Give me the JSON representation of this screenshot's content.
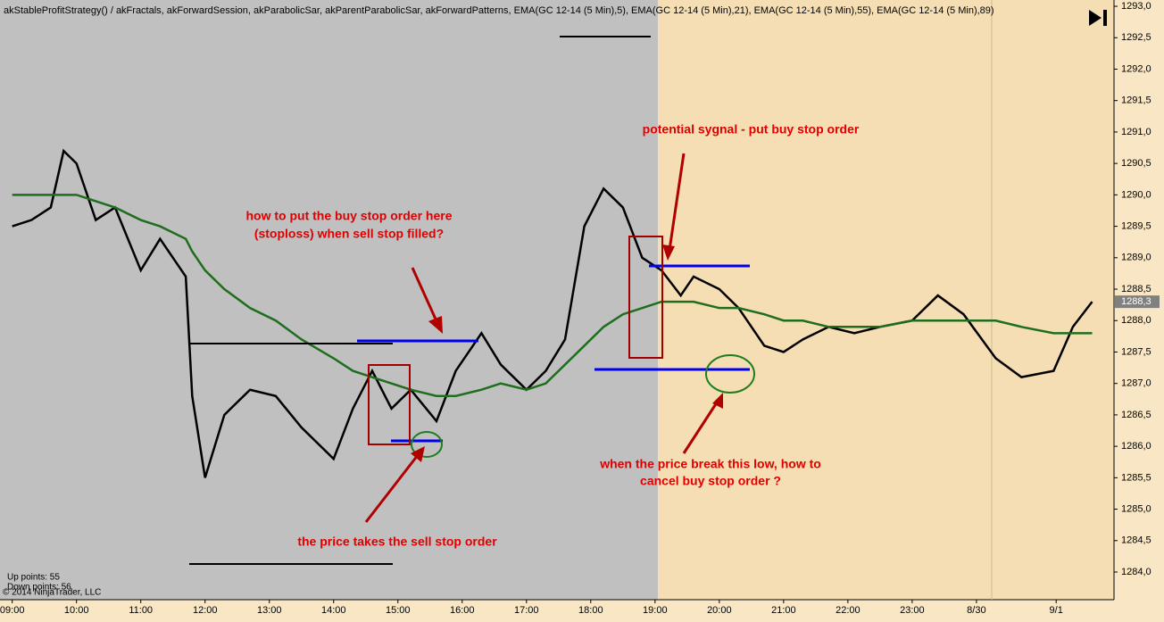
{
  "chart_data": {
    "type": "line",
    "title": "akStableProfitStrategy() / akFractals, akForwardSession, akParabolicSar, akParentParabolicSar, akForwardPatterns, EMA(GC 12-14 (5 Min),5), EMA(GC 12-14 (5 Min),21), EMA(GC 12-14 (5 Min),55), EMA(GC 12-14 (5 Min),89)",
    "x": [
      0,
      0.3,
      0.6,
      0.8,
      1.0,
      1.3,
      1.6,
      2.0,
      2.3,
      2.7,
      2.8,
      3.0,
      3.3,
      3.7,
      4.1,
      4.5,
      5.0,
      5.3,
      5.6,
      5.9,
      6.2,
      6.6,
      6.9,
      7.3,
      7.6,
      8.0,
      8.3,
      8.6,
      8.9,
      9.2,
      9.5,
      9.8,
      10.1,
      10.4,
      10.6,
      11.0,
      11.3,
      11.7,
      12.0,
      12.3,
      12.7,
      13.1,
      13.5,
      14.0,
      14.4,
      14.8,
      15.3,
      15.7,
      16.2,
      16.5,
      16.8
    ],
    "series": [
      {
        "color": "#000000",
        "values": [
          1289.5,
          1289.6,
          1289.8,
          1290.7,
          1290.5,
          1289.6,
          1289.8,
          1288.8,
          1289.3,
          1288.7,
          1286.8,
          1285.5,
          1286.5,
          1286.9,
          1286.8,
          1286.3,
          1285.8,
          1286.6,
          1287.2,
          1286.6,
          1286.9,
          1286.4,
          1287.2,
          1287.8,
          1287.3,
          1286.9,
          1287.2,
          1287.7,
          1289.5,
          1290.1,
          1289.8,
          1289.0,
          1288.8,
          1288.4,
          1288.7,
          1288.5,
          1288.2,
          1287.6,
          1287.5,
          1287.7,
          1287.9,
          1287.8,
          1287.9,
          1288.0,
          1288.4,
          1288.1,
          1287.4,
          1287.1,
          1287.2,
          1287.9,
          1288.3
        ]
      },
      {
        "color": "#1e6e1e",
        "values": [
          1290.0,
          1290.0,
          1290.0,
          1290.0,
          1290.0,
          1289.9,
          1289.8,
          1289.6,
          1289.5,
          1289.3,
          1289.1,
          1288.8,
          1288.5,
          1288.2,
          1288.0,
          1287.7,
          1287.4,
          1287.2,
          1287.1,
          1287.0,
          1286.9,
          1286.8,
          1286.8,
          1286.9,
          1287.0,
          1286.9,
          1287.0,
          1287.3,
          1287.6,
          1287.9,
          1288.1,
          1288.2,
          1288.3,
          1288.3,
          1288.3,
          1288.2,
          1288.2,
          1288.1,
          1288.0,
          1288.0,
          1287.9,
          1287.9,
          1287.9,
          1288.0,
          1288.0,
          1288.0,
          1288.0,
          1287.9,
          1287.8,
          1287.8,
          1287.8
        ]
      }
    ],
    "xlim": [
      -0.19,
      17.14
    ],
    "xticks": [
      {
        "value": 0,
        "label": "09:00"
      },
      {
        "value": 1,
        "label": "10:00"
      },
      {
        "value": 2,
        "label": "11:00"
      },
      {
        "value": 3,
        "label": "12:00"
      },
      {
        "value": 4,
        "label": "13:00"
      },
      {
        "value": 5,
        "label": "14:00"
      },
      {
        "value": 6,
        "label": "15:00"
      },
      {
        "value": 7,
        "label": "16:00"
      },
      {
        "value": 8,
        "label": "17:00"
      },
      {
        "value": 9,
        "label": "18:00"
      },
      {
        "value": 10,
        "label": "19:00"
      },
      {
        "value": 11,
        "label": "20:00"
      },
      {
        "value": 12,
        "label": "21:00"
      },
      {
        "value": 13,
        "label": "22:00"
      },
      {
        "value": 14,
        "label": "23:00"
      },
      {
        "value": 15,
        "label": "8/30"
      },
      {
        "value": 16.24,
        "label": "9/1"
      }
    ],
    "ylim": [
      1283.56,
      1293.1
    ],
    "yticks": [
      {
        "value": 1284,
        "label": "1284,0"
      },
      {
        "value": 1284.5,
        "label": "1284,5"
      },
      {
        "value": 1285,
        "label": "1285,0"
      },
      {
        "value": 1285.5,
        "label": "1285,5"
      },
      {
        "value": 1286,
        "label": "1286,0"
      },
      {
        "value": 1286.5,
        "label": "1286,5"
      },
      {
        "value": 1287,
        "label": "1287,0"
      },
      {
        "value": 1287.5,
        "label": "1287,5"
      },
      {
        "value": 1288,
        "label": "1288,0"
      },
      {
        "value": 1288.5,
        "label": "1288,5"
      },
      {
        "value": 1289,
        "label": "1289,0"
      },
      {
        "value": 1289.5,
        "label": "1289,5"
      },
      {
        "value": 1290,
        "label": "1290,0"
      },
      {
        "value": 1290.5,
        "label": "1290,5"
      },
      {
        "value": 1291,
        "label": "1291,0"
      },
      {
        "value": 1291.5,
        "label": "1291,5"
      },
      {
        "value": 1292,
        "label": "1292,0"
      },
      {
        "value": 1292.5,
        "label": "1292,5"
      },
      {
        "value": 1293,
        "label": "1293,0"
      }
    ],
    "last_price": {
      "value": 1288.3,
      "label": "1288,3"
    },
    "annotations": [
      {
        "lines": [
          "how to put the buy stop order here",
          "(stoploss) when sell stop filled?"
        ]
      },
      {
        "lines": [
          "potential sygnal - put buy stop order"
        ]
      },
      {
        "lines": [
          "the price takes the sell stop order"
        ]
      },
      {
        "lines": [
          "when the price break this low, how to",
          "cancel buy stop order ?"
        ]
      }
    ],
    "stats": [
      "Up points: 55",
      "Down points: 56"
    ],
    "copyright": "© 2014 NinjaTrader, LLC"
  }
}
